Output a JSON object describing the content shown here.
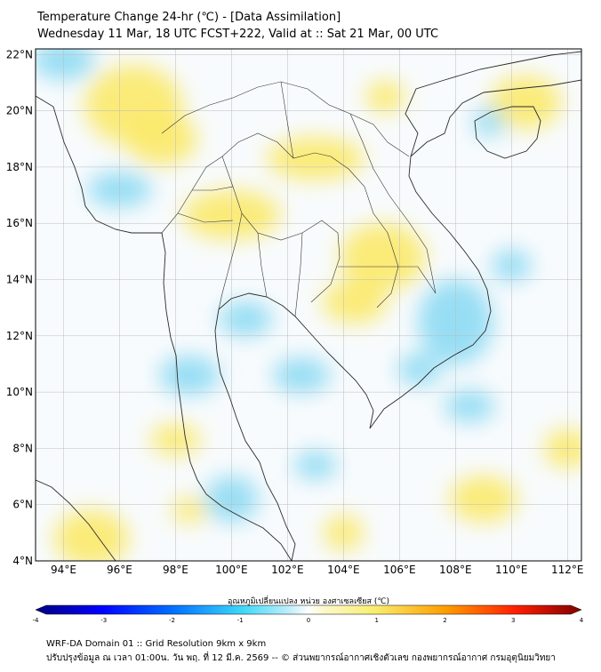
{
  "title": "Temperature Change 24-hr (℃) - [Data Assimilation]",
  "subtitle": "Wednesday 11 Mar, 18 UTC FCST+222, Valid at :: Sat 21 Mar, 00 UTC",
  "map": {
    "lon_range": [
      93,
      112.5
    ],
    "lat_range": [
      4,
      22.2
    ],
    "lon_ticks": [
      "94°E",
      "96°E",
      "98°E",
      "100°E",
      "102°E",
      "104°E",
      "106°E",
      "108°E",
      "110°E",
      "112°E"
    ],
    "lat_ticks": [
      "4°N",
      "6°N",
      "8°N",
      "10°N",
      "12°N",
      "14°N",
      "16°N",
      "18°N",
      "20°N",
      "22°N"
    ],
    "background_color": "#f8fbfd",
    "warm_color": "#fbe96a",
    "cool_color": "#86d8f2",
    "grid": true
  },
  "colorbar": {
    "label": "อุณหภูมิเปลี่ยนแปลง หน่วย องศาเซลเซียส (℃)",
    "ticks": [
      "-4",
      "-3",
      "-2",
      "-1",
      "0",
      "1",
      "2",
      "3",
      "4"
    ],
    "min": -4,
    "max": 4
  },
  "footer": {
    "line1": "WRF-DA Domain 01 :: Grid Resolution 9km x 9km",
    "line2": "ปรับปรุงข้อมูล ณ เวลา 01:00น. วัน พฤ. ที่ 12 มี.ค. 2569 -- © ส่วนพยากรณ์อากาศเชิงตัวเลข กองพยากรณ์อากาศ กรมอุตุนิยมวิทยา"
  }
}
